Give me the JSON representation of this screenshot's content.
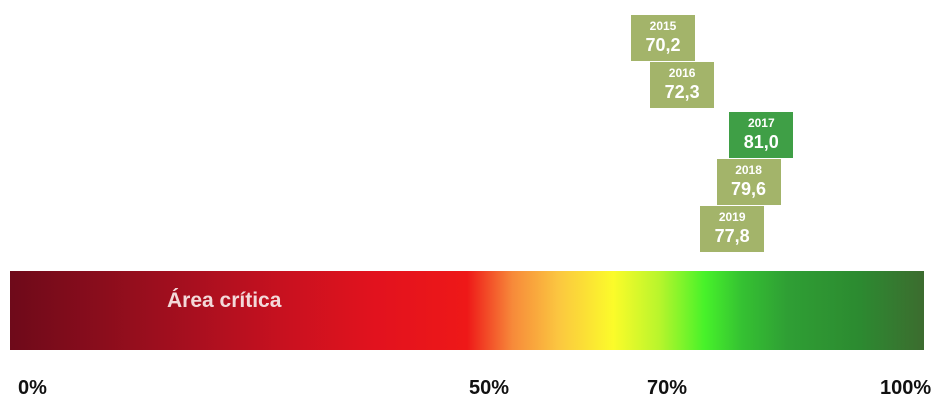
{
  "chart_data": {
    "type": "gauge",
    "xlim": [
      0,
      100
    ],
    "unit": "%",
    "ticks": [
      "0%",
      "50%",
      "70%",
      "100%"
    ],
    "ticks_values": [
      0,
      50,
      70,
      100
    ],
    "band_label": "Área crítica",
    "points": [
      {
        "year": "2015",
        "label": "70,2",
        "value": 70.2,
        "color": "#a3b46a"
      },
      {
        "year": "2016",
        "label": "72,3",
        "value": 72.3,
        "color": "#a3b46a"
      },
      {
        "year": "2017",
        "label": "81,0",
        "value": 81.0,
        "color": "#3f9f46"
      },
      {
        "year": "2018",
        "label": "79,6",
        "value": 79.6,
        "color": "#a3b46a"
      },
      {
        "year": "2019",
        "label": "77,8",
        "value": 77.8,
        "color": "#a3b46a"
      }
    ]
  }
}
